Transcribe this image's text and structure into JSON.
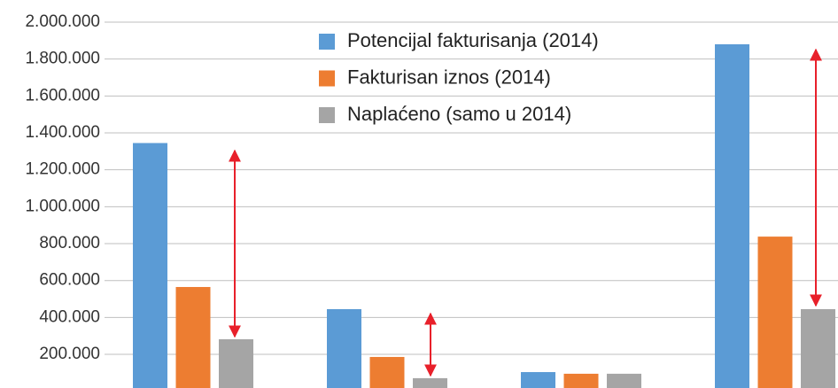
{
  "chart_data": {
    "type": "bar",
    "categories": [
      null,
      null,
      null,
      null
    ],
    "series": [
      {
        "name": "Potencijal fakturisanja (2014)",
        "color": "#5b9bd5",
        "values": [
          1345000,
          445000,
          104000,
          1880000
        ]
      },
      {
        "name": "Fakturisan iznos (2014)",
        "color": "#ed7d31",
        "values": [
          565000,
          186000,
          95000,
          838000
        ]
      },
      {
        "name": "Naplaćeno (samo u 2014)",
        "color": "#a5a5a5",
        "values": [
          282000,
          71000,
          95000,
          445000
        ]
      }
    ],
    "ylim": [
      0,
      2000000
    ],
    "yticks": [
      {
        "value": 200000,
        "label": "200.000"
      },
      {
        "value": 400000,
        "label": "400.000"
      },
      {
        "value": 600000,
        "label": "600.000"
      },
      {
        "value": 800000,
        "label": "800.000"
      },
      {
        "value": 1000000,
        "label": "1.000.000"
      },
      {
        "value": 1200000,
        "label": "1.200.000"
      },
      {
        "value": 1400000,
        "label": "1.400.000"
      },
      {
        "value": 1600000,
        "label": "1.600.000"
      },
      {
        "value": 1800000,
        "label": "1.800.000"
      },
      {
        "value": 2000000,
        "label": "2.000.000"
      }
    ],
    "grid": true
  }
}
